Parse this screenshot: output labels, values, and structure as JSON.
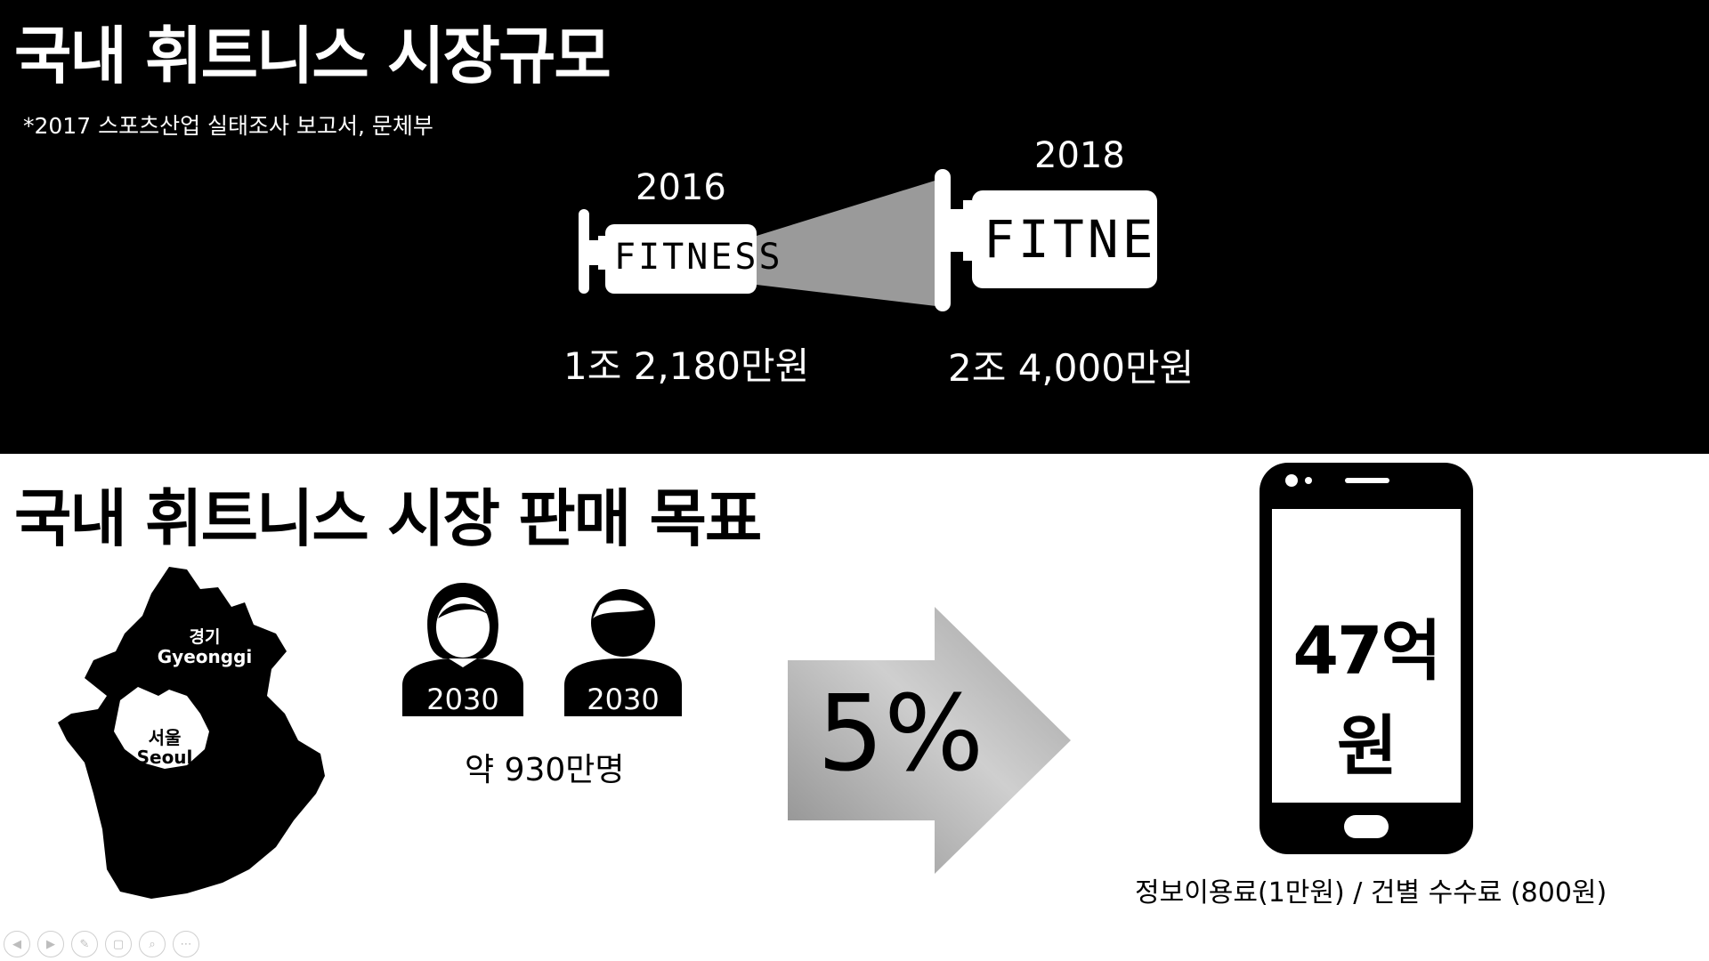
{
  "top": {
    "title": "국내 휘트니스 시장규모",
    "source": "*2017 스포츠산업 실태조사 보고서, 문체부",
    "year_2016": "2016",
    "year_2018": "2018",
    "fitness_label_small": "FITNESS",
    "fitness_label_large": "FITNESS",
    "value_2016": "1조 2,180만원",
    "value_2018": "2조 4,000만원"
  },
  "bottom": {
    "title": "국내 휘트니스 시장 판매 목표",
    "map": {
      "gyeonggi_ko": "경기",
      "gyeonggi_en": "Gyeonggi",
      "seoul_ko": "서울",
      "seoul_en": "Seoul"
    },
    "female_label": "2030",
    "male_label": "2030",
    "population": "약 930만명",
    "percent": "5%",
    "phone_value": "47억원",
    "fee_text": "정보이용료(1만원) / 건별 수수료 (800원)"
  },
  "icons": {
    "dumbbell": "dumbbell-icon",
    "woman": "woman-icon",
    "man": "man-icon",
    "arrow": "arrow-right-icon",
    "phone": "smartphone-icon",
    "map": "map-icon"
  },
  "colors": {
    "band": "#000000",
    "background": "#ffffff"
  },
  "controls": [
    "◀",
    "▶",
    "✎",
    "▢",
    "⌕",
    "⋯"
  ]
}
